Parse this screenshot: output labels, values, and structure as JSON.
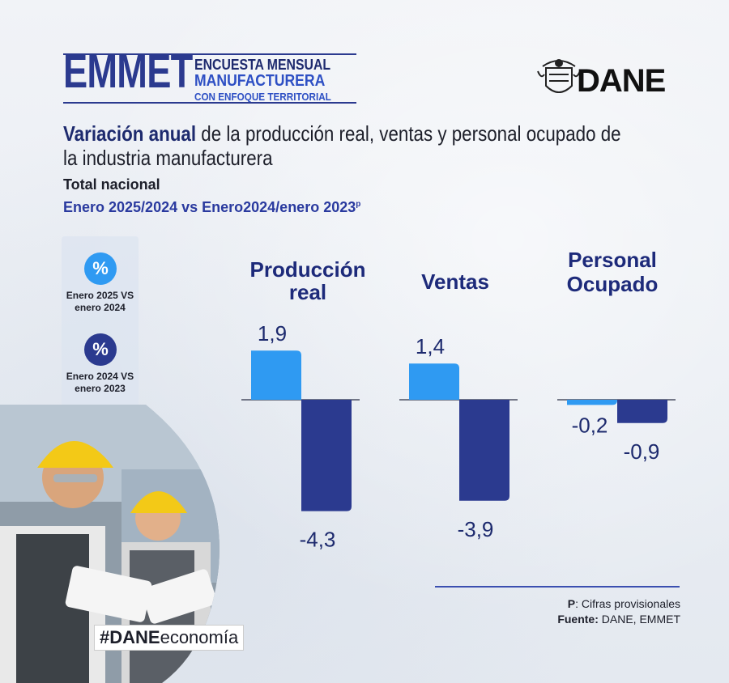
{
  "header": {
    "brand": "EMMET",
    "brand_line1": "ENCUESTA MENSUAL",
    "brand_line2": "MANUFACTURERA",
    "brand_line3": "CON ENFOQUE TERRITORIAL",
    "logo_text": "DANE"
  },
  "title_bold": "Variación anual",
  "title_rest": " de la producción real, ventas y personal ocupado de la industria manufacturera",
  "subtitle": "Total nacional",
  "period": "Enero 2025/2024 vs Enero2024/enero 2023",
  "period_sup": "p",
  "legend": [
    {
      "symbol": "%",
      "label": "Enero 2025 VS enero 2024",
      "color": "#2f9af2"
    },
    {
      "symbol": "%",
      "label": "Enero 2024 VS enero 2023",
      "color": "#2b3a8f"
    }
  ],
  "chart_data": {
    "type": "bar",
    "categories": [
      "Producción real",
      "Ventas",
      "Personal Ocupado"
    ],
    "series": [
      {
        "name": "Enero 2025 VS enero 2024",
        "values": [
          1.9,
          1.4,
          -0.2
        ],
        "color": "#2f9af2"
      },
      {
        "name": "Enero 2024 VS enero 2023",
        "values": [
          -4.3,
          -3.9,
          -0.9
        ],
        "color": "#2b3a8f"
      }
    ],
    "value_labels": [
      [
        "1,9",
        "1,4",
        "-0,2"
      ],
      [
        "-4,3",
        "-3,9",
        "-0,9"
      ]
    ]
  },
  "hashtag_bold": "#DANE",
  "hashtag_rest": "economía",
  "footnote_p_key": "P",
  "footnote_p_text": ": Cifras provisionales",
  "footnote_source_key": "Fuente:",
  "footnote_source_text": " DANE, EMMET"
}
